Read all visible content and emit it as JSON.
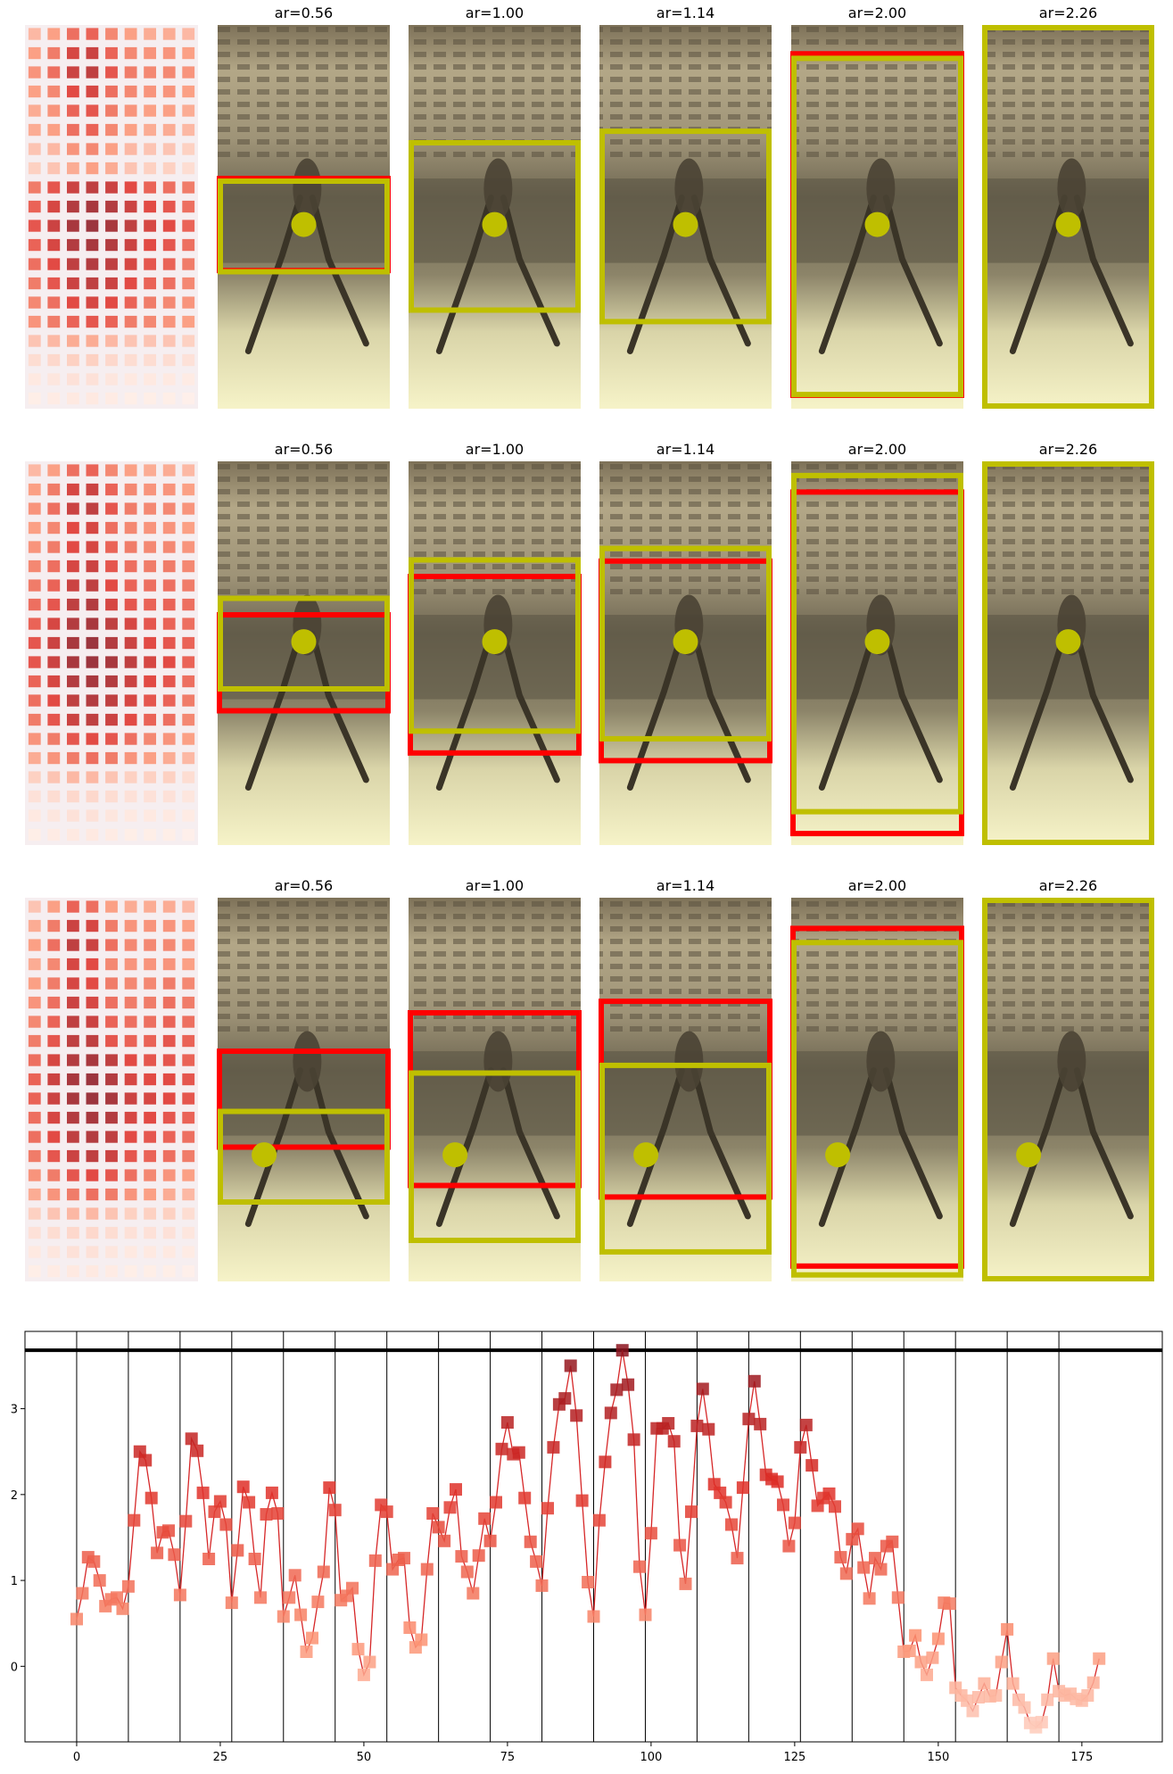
{
  "panel_rows": [
    {
      "titles": [
        "ar=0.56",
        "ar=1.00",
        "ar=1.14",
        "ar=2.00",
        "ar=2.26"
      ],
      "face_center": [
        0.5,
        0.52
      ],
      "red_lines": [
        [
          0.4,
          0.64
        ],
        [],
        [],
        [
          0.075,
          0.965
        ],
        []
      ],
      "yellow_boxes": [
        [
          0.4,
          0.65
        ],
        [
          0.3,
          0.75
        ],
        [
          0.27,
          0.78
        ],
        [
          0.08,
          0.97
        ],
        [
          0.0,
          1.0
        ]
      ]
    },
    {
      "titles": [
        "ar=0.56",
        "ar=1.00",
        "ar=1.14",
        "ar=2.00",
        "ar=2.26"
      ],
      "face_center": [
        0.5,
        0.47
      ],
      "red_lines": [
        [
          0.4,
          0.65
        ],
        [
          0.3,
          0.76
        ],
        [
          0.26,
          0.78
        ],
        [
          0.08,
          0.97
        ],
        []
      ],
      "yellow_boxes": [
        [
          0.35,
          0.6
        ],
        [
          0.25,
          0.71
        ],
        [
          0.22,
          0.73
        ],
        [
          0.03,
          0.92
        ],
        [
          0.0,
          1.0
        ]
      ]
    },
    {
      "titles": [
        "ar=0.56",
        "ar=1.00",
        "ar=1.14",
        "ar=2.00",
        "ar=2.26"
      ],
      "face_center": [
        0.27,
        0.67
      ],
      "red_lines": [
        [
          0.4,
          0.65
        ],
        [
          0.3,
          0.75
        ],
        [
          0.27,
          0.78
        ],
        [
          0.08,
          0.96
        ],
        []
      ],
      "yellow_boxes": [
        [
          0.55,
          0.8
        ],
        [
          0.45,
          0.9
        ],
        [
          0.43,
          0.93
        ],
        [
          0.11,
          0.99
        ],
        [
          0.0,
          1.0
        ]
      ]
    }
  ],
  "chart_data": {
    "type": "line",
    "title": "",
    "xlabel": "",
    "ylabel": "",
    "xlim": [
      -9,
      189
    ],
    "ylim": [
      -0.88,
      3.9
    ],
    "xticks": [
      0,
      25,
      50,
      75,
      100,
      125,
      150,
      175
    ],
    "yticks": [
      0,
      1,
      2,
      3
    ],
    "vlines": [
      0,
      9,
      18,
      27,
      36,
      45,
      54,
      63,
      72,
      81,
      90,
      99,
      108,
      117,
      126,
      135,
      144,
      153,
      162,
      171
    ],
    "hline": 3.68,
    "grid": false,
    "series": [
      {
        "values": [
          0.55,
          0.85,
          1.27,
          1.22,
          1.0,
          0.7,
          0.78,
          0.8,
          0.67,
          0.93,
          1.7,
          2.5,
          2.4,
          1.96,
          1.32,
          1.56,
          1.58,
          1.3,
          0.83,
          1.69,
          2.65,
          2.51,
          2.02,
          1.25,
          1.8,
          1.92,
          1.65,
          0.74,
          1.35,
          2.09,
          1.91,
          1.25,
          0.8,
          1.77,
          2.02,
          1.78,
          0.58,
          0.8,
          1.06,
          0.6,
          0.17,
          0.33,
          0.75,
          1.1,
          2.08,
          1.82,
          0.77,
          0.82,
          0.91,
          0.2,
          -0.1,
          0.05,
          1.23,
          1.88,
          1.8,
          1.13,
          1.24,
          1.26,
          0.45,
          0.22,
          0.31,
          1.13,
          1.78,
          1.62,
          1.46,
          1.85,
          2.06,
          1.28,
          1.1,
          0.85,
          1.29,
          1.72,
          1.46,
          1.91,
          2.53,
          2.84,
          2.47,
          2.49,
          1.96,
          1.45,
          1.22,
          0.94,
          1.84,
          2.55,
          3.05,
          3.12,
          3.5,
          2.92,
          1.93,
          0.98,
          0.58,
          1.7,
          2.38,
          2.95,
          3.22,
          3.68,
          3.28,
          2.64,
          1.16,
          0.6,
          1.55,
          2.77,
          2.77,
          2.83,
          2.62,
          1.41,
          0.96,
          1.8,
          2.8,
          3.23,
          2.76,
          2.12,
          2.02,
          1.91,
          1.65,
          1.26,
          2.08,
          2.88,
          3.32,
          2.82,
          2.23,
          2.18,
          2.15,
          1.88,
          1.4,
          1.67,
          2.55,
          2.81,
          2.34,
          1.87,
          1.96,
          2.01,
          1.86,
          1.27,
          1.08,
          1.48,
          1.6,
          1.15,
          0.79,
          1.26,
          1.13,
          1.4,
          1.45,
          0.8,
          0.17,
          0.18,
          0.36,
          0.05,
          -0.1,
          0.1,
          0.32,
          0.74,
          0.73,
          -0.25,
          -0.34,
          -0.4,
          -0.52,
          -0.36,
          -0.2,
          -0.35,
          -0.34,
          0.05,
          0.43,
          -0.2,
          -0.39,
          -0.48,
          -0.66,
          -0.71,
          -0.65,
          -0.39,
          0.09,
          -0.29,
          -0.34,
          -0.32,
          -0.38,
          -0.4,
          -0.34,
          -0.19,
          0.09
        ]
      }
    ]
  },
  "heatmaps": [
    {
      "rows": [
        [
          0.25,
          0.35,
          0.55,
          0.6,
          0.45,
          0.35,
          0.3,
          0.3,
          0.25
        ],
        [
          0.35,
          0.5,
          0.75,
          0.8,
          0.6,
          0.45,
          0.4,
          0.4,
          0.35
        ],
        [
          0.4,
          0.55,
          0.8,
          0.85,
          0.65,
          0.5,
          0.45,
          0.45,
          0.4
        ],
        [
          0.35,
          0.45,
          0.7,
          0.75,
          0.55,
          0.45,
          0.4,
          0.4,
          0.35
        ],
        [
          0.3,
          0.4,
          0.6,
          0.65,
          0.5,
          0.4,
          0.35,
          0.35,
          0.3
        ],
        [
          0.3,
          0.35,
          0.55,
          0.6,
          0.45,
          0.35,
          0.3,
          0.3,
          0.25
        ],
        [
          0.2,
          0.25,
          0.4,
          0.45,
          0.35,
          0.25,
          0.2,
          0.2,
          0.15
        ],
        [
          0.15,
          0.2,
          0.3,
          0.35,
          0.3,
          0.2,
          0.15,
          0.15,
          0.1
        ],
        [
          0.5,
          0.65,
          0.8,
          0.85,
          0.8,
          0.7,
          0.6,
          0.55,
          0.5
        ],
        [
          0.6,
          0.75,
          0.9,
          0.95,
          0.9,
          0.8,
          0.7,
          0.65,
          0.55
        ],
        [
          0.65,
          0.8,
          0.95,
          1.0,
          0.95,
          0.85,
          0.75,
          0.7,
          0.6
        ],
        [
          0.6,
          0.75,
          0.9,
          0.95,
          0.9,
          0.8,
          0.7,
          0.65,
          0.55
        ],
        [
          0.55,
          0.7,
          0.85,
          0.9,
          0.85,
          0.75,
          0.65,
          0.6,
          0.5
        ],
        [
          0.5,
          0.65,
          0.8,
          0.85,
          0.8,
          0.7,
          0.6,
          0.55,
          0.45
        ],
        [
          0.45,
          0.55,
          0.7,
          0.75,
          0.7,
          0.6,
          0.5,
          0.45,
          0.4
        ],
        [
          0.4,
          0.5,
          0.6,
          0.65,
          0.6,
          0.5,
          0.45,
          0.4,
          0.35
        ],
        [
          0.2,
          0.25,
          0.3,
          0.3,
          0.25,
          0.2,
          0.2,
          0.2,
          0.15
        ],
        [
          0.1,
          0.12,
          0.15,
          0.15,
          0.12,
          0.1,
          0.1,
          0.1,
          0.08
        ],
        [
          0.05,
          0.06,
          0.08,
          0.08,
          0.06,
          0.05,
          0.05,
          0.05,
          0.04
        ],
        [
          0.03,
          0.04,
          0.05,
          0.05,
          0.04,
          0.03,
          0.03,
          0.03,
          0.02
        ]
      ]
    },
    {
      "rows": [
        [
          0.25,
          0.35,
          0.55,
          0.6,
          0.45,
          0.35,
          0.3,
          0.3,
          0.25
        ],
        [
          0.35,
          0.5,
          0.75,
          0.8,
          0.6,
          0.45,
          0.4,
          0.4,
          0.35
        ],
        [
          0.4,
          0.55,
          0.8,
          0.85,
          0.65,
          0.5,
          0.45,
          0.45,
          0.4
        ],
        [
          0.35,
          0.45,
          0.7,
          0.75,
          0.55,
          0.45,
          0.4,
          0.4,
          0.35
        ],
        [
          0.4,
          0.5,
          0.7,
          0.75,
          0.6,
          0.5,
          0.45,
          0.45,
          0.4
        ],
        [
          0.45,
          0.55,
          0.75,
          0.8,
          0.65,
          0.55,
          0.5,
          0.5,
          0.45
        ],
        [
          0.5,
          0.6,
          0.8,
          0.85,
          0.7,
          0.6,
          0.55,
          0.55,
          0.5
        ],
        [
          0.55,
          0.65,
          0.85,
          0.9,
          0.75,
          0.65,
          0.6,
          0.6,
          0.55
        ],
        [
          0.6,
          0.75,
          0.9,
          0.95,
          0.85,
          0.75,
          0.65,
          0.6,
          0.55
        ],
        [
          0.65,
          0.8,
          0.95,
          1.0,
          0.9,
          0.8,
          0.7,
          0.65,
          0.6
        ],
        [
          0.65,
          0.8,
          0.95,
          1.0,
          0.95,
          0.85,
          0.75,
          0.7,
          0.6
        ],
        [
          0.6,
          0.75,
          0.9,
          0.95,
          0.9,
          0.8,
          0.7,
          0.65,
          0.55
        ],
        [
          0.55,
          0.7,
          0.85,
          0.9,
          0.85,
          0.75,
          0.65,
          0.6,
          0.5
        ],
        [
          0.5,
          0.65,
          0.8,
          0.85,
          0.8,
          0.7,
          0.6,
          0.55,
          0.45
        ],
        [
          0.4,
          0.5,
          0.65,
          0.7,
          0.65,
          0.55,
          0.45,
          0.4,
          0.35
        ],
        [
          0.3,
          0.4,
          0.5,
          0.55,
          0.5,
          0.4,
          0.35,
          0.3,
          0.25
        ],
        [
          0.15,
          0.2,
          0.25,
          0.25,
          0.2,
          0.15,
          0.15,
          0.15,
          0.1
        ],
        [
          0.08,
          0.1,
          0.12,
          0.12,
          0.1,
          0.08,
          0.08,
          0.08,
          0.06
        ],
        [
          0.05,
          0.06,
          0.08,
          0.08,
          0.06,
          0.05,
          0.05,
          0.05,
          0.04
        ],
        [
          0.03,
          0.04,
          0.05,
          0.05,
          0.04,
          0.03,
          0.03,
          0.03,
          0.02
        ]
      ]
    },
    {
      "rows": [
        [
          0.2,
          0.35,
          0.6,
          0.55,
          0.35,
          0.3,
          0.3,
          0.3,
          0.25
        ],
        [
          0.3,
          0.5,
          0.8,
          0.75,
          0.5,
          0.4,
          0.4,
          0.4,
          0.35
        ],
        [
          0.35,
          0.55,
          0.85,
          0.8,
          0.55,
          0.45,
          0.45,
          0.45,
          0.4
        ],
        [
          0.3,
          0.45,
          0.75,
          0.7,
          0.45,
          0.4,
          0.4,
          0.4,
          0.35
        ],
        [
          0.35,
          0.5,
          0.75,
          0.7,
          0.5,
          0.45,
          0.45,
          0.5,
          0.45
        ],
        [
          0.4,
          0.55,
          0.8,
          0.75,
          0.55,
          0.5,
          0.5,
          0.55,
          0.5
        ],
        [
          0.45,
          0.6,
          0.85,
          0.8,
          0.6,
          0.55,
          0.55,
          0.6,
          0.55
        ],
        [
          0.5,
          0.65,
          0.85,
          0.85,
          0.65,
          0.6,
          0.6,
          0.65,
          0.6
        ],
        [
          0.55,
          0.75,
          0.9,
          0.95,
          0.85,
          0.7,
          0.65,
          0.65,
          0.6
        ],
        [
          0.6,
          0.8,
          0.95,
          1.0,
          0.9,
          0.75,
          0.7,
          0.7,
          0.65
        ],
        [
          0.6,
          0.8,
          0.95,
          1.0,
          0.95,
          0.8,
          0.75,
          0.7,
          0.65
        ],
        [
          0.55,
          0.75,
          0.9,
          0.95,
          0.9,
          0.75,
          0.7,
          0.65,
          0.6
        ],
        [
          0.55,
          0.7,
          0.85,
          0.9,
          0.85,
          0.7,
          0.65,
          0.6,
          0.55
        ],
        [
          0.5,
          0.65,
          0.8,
          0.85,
          0.8,
          0.65,
          0.6,
          0.55,
          0.5
        ],
        [
          0.4,
          0.5,
          0.65,
          0.7,
          0.65,
          0.55,
          0.45,
          0.4,
          0.35
        ],
        [
          0.3,
          0.4,
          0.5,
          0.55,
          0.5,
          0.4,
          0.35,
          0.3,
          0.25
        ],
        [
          0.15,
          0.2,
          0.25,
          0.25,
          0.2,
          0.15,
          0.15,
          0.15,
          0.1
        ],
        [
          0.08,
          0.1,
          0.12,
          0.12,
          0.1,
          0.08,
          0.08,
          0.08,
          0.06
        ],
        [
          0.05,
          0.06,
          0.08,
          0.08,
          0.06,
          0.05,
          0.05,
          0.05,
          0.04
        ],
        [
          0.03,
          0.04,
          0.05,
          0.05,
          0.04,
          0.03,
          0.03,
          0.03,
          0.02
        ]
      ]
    }
  ],
  "colors": {
    "box_yellow": "#bfbf00",
    "box_red": "#ff0000",
    "line_red": "#d62728",
    "hline_black": "#000000"
  }
}
